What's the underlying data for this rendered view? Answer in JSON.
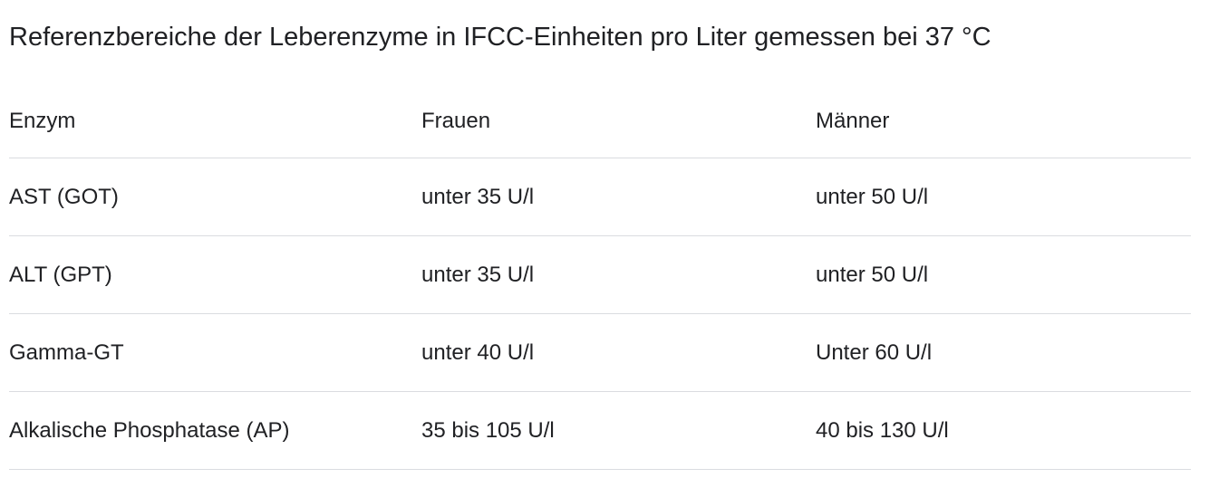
{
  "title": "Referenzbereiche der Leberenzyme in IFCC-Einheiten pro Liter gemessen bei 37 °C",
  "table": {
    "headers": [
      "Enzym",
      "Frauen",
      "Männer"
    ],
    "rows": [
      [
        "AST (GOT)",
        "unter 35 U/l",
        "unter 50 U/l"
      ],
      [
        "ALT (GPT)",
        "unter 35 U/l",
        "unter 50 U/l"
      ],
      [
        "Gamma-GT",
        "unter 40 U/l",
        "Unter 60 U/l"
      ],
      [
        "Alkalische Phosphatase (AP)",
        "35 bis 105 U/l",
        "40 bis 130 U/l"
      ]
    ]
  },
  "colors": {
    "text": "#202124",
    "divider": "#dadce0",
    "background": "#ffffff"
  }
}
